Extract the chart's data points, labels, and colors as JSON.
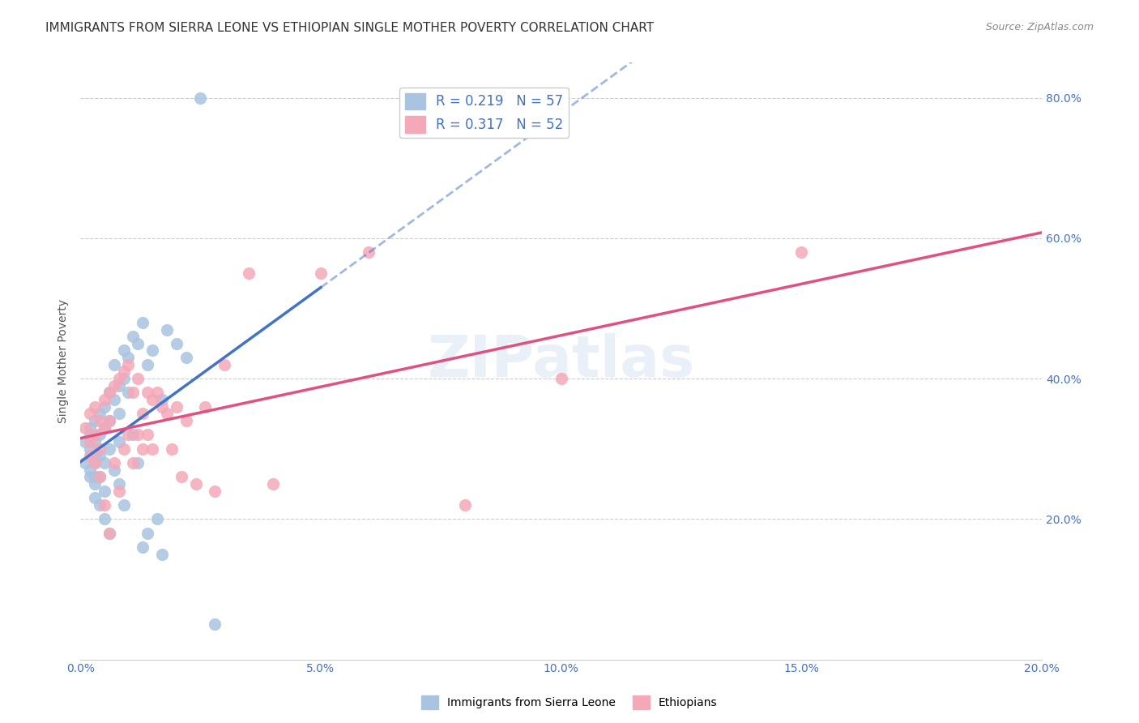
{
  "title": "IMMIGRANTS FROM SIERRA LEONE VS ETHIOPIAN SINGLE MOTHER POVERTY CORRELATION CHART",
  "source": "Source: ZipAtlas.com",
  "xlabel": "",
  "ylabel": "Single Mother Poverty",
  "xlim": [
    0.0,
    0.2
  ],
  "ylim": [
    0.0,
    0.85
  ],
  "xticks": [
    0.0,
    0.05,
    0.1,
    0.15,
    0.2
  ],
  "yticks_right": [
    0.2,
    0.4,
    0.6,
    0.8
  ],
  "watermark": "ZIPatlas",
  "legend_R1": "R = 0.219",
  "legend_N1": "N = 57",
  "legend_R2": "R = 0.317",
  "legend_N2": "N = 52",
  "blue_color": "#a8c4e0",
  "pink_color": "#f4a8b8",
  "blue_line_color": "#4472c4",
  "pink_line_color": "#e05080",
  "blue_dash_color": "#a8c4e0",
  "axis_label_color": "#4472c4",
  "title_fontsize": 11,
  "label_fontsize": 9,
  "sierra_leone_x": [
    0.001,
    0.001,
    0.002,
    0.002,
    0.002,
    0.002,
    0.002,
    0.003,
    0.003,
    0.003,
    0.003,
    0.003,
    0.003,
    0.003,
    0.004,
    0.004,
    0.004,
    0.004,
    0.004,
    0.005,
    0.005,
    0.005,
    0.005,
    0.005,
    0.006,
    0.006,
    0.006,
    0.006,
    0.007,
    0.007,
    0.007,
    0.008,
    0.008,
    0.008,
    0.008,
    0.009,
    0.009,
    0.009,
    0.01,
    0.01,
    0.011,
    0.011,
    0.012,
    0.012,
    0.013,
    0.013,
    0.014,
    0.014,
    0.015,
    0.016,
    0.017,
    0.017,
    0.018,
    0.02,
    0.022,
    0.025,
    0.028
  ],
  "sierra_leone_y": [
    0.31,
    0.28,
    0.32,
    0.3,
    0.27,
    0.33,
    0.26,
    0.34,
    0.29,
    0.25,
    0.28,
    0.31,
    0.26,
    0.23,
    0.35,
    0.32,
    0.29,
    0.26,
    0.22,
    0.36,
    0.33,
    0.28,
    0.24,
    0.2,
    0.38,
    0.34,
    0.3,
    0.18,
    0.37,
    0.42,
    0.27,
    0.39,
    0.35,
    0.31,
    0.25,
    0.44,
    0.4,
    0.22,
    0.43,
    0.38,
    0.46,
    0.32,
    0.45,
    0.28,
    0.48,
    0.16,
    0.42,
    0.18,
    0.44,
    0.2,
    0.37,
    0.15,
    0.47,
    0.45,
    0.43,
    0.8,
    0.05
  ],
  "ethiopians_x": [
    0.001,
    0.002,
    0.002,
    0.002,
    0.003,
    0.003,
    0.003,
    0.004,
    0.004,
    0.004,
    0.005,
    0.005,
    0.005,
    0.006,
    0.006,
    0.006,
    0.007,
    0.007,
    0.008,
    0.008,
    0.009,
    0.009,
    0.01,
    0.01,
    0.011,
    0.011,
    0.012,
    0.012,
    0.013,
    0.013,
    0.014,
    0.014,
    0.015,
    0.015,
    0.016,
    0.017,
    0.018,
    0.019,
    0.02,
    0.021,
    0.022,
    0.024,
    0.026,
    0.028,
    0.03,
    0.035,
    0.04,
    0.05,
    0.06,
    0.08,
    0.1,
    0.15
  ],
  "ethiopians_y": [
    0.33,
    0.31,
    0.35,
    0.29,
    0.32,
    0.36,
    0.28,
    0.34,
    0.3,
    0.26,
    0.37,
    0.33,
    0.22,
    0.38,
    0.34,
    0.18,
    0.39,
    0.28,
    0.4,
    0.24,
    0.41,
    0.3,
    0.42,
    0.32,
    0.38,
    0.28,
    0.4,
    0.32,
    0.35,
    0.3,
    0.38,
    0.32,
    0.37,
    0.3,
    0.38,
    0.36,
    0.35,
    0.3,
    0.36,
    0.26,
    0.34,
    0.25,
    0.36,
    0.24,
    0.42,
    0.55,
    0.25,
    0.55,
    0.58,
    0.22,
    0.4,
    0.58
  ]
}
